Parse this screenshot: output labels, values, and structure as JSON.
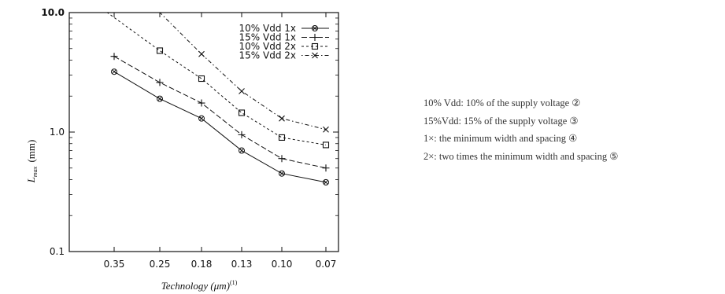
{
  "chart_data": {
    "type": "line",
    "categories": [
      "0.35",
      "0.25",
      "0.18",
      "0.13",
      "0.10",
      "0.07"
    ],
    "xlabel": "Technology (μm)",
    "xlabel_sup": "(1)",
    "ylabel": "L",
    "ylabel_sub": "max",
    "ylabel_unit": "(mm)",
    "yscale": "log",
    "ylim": [
      0.1,
      10.0
    ],
    "yticks": [
      "0.1",
      "1.0",
      "10.0"
    ],
    "legend_position": "top-right",
    "grid": false,
    "series": [
      {
        "name": "10% Vdd 1x",
        "marker": "circle-x",
        "dash": "solid",
        "values": [
          3.2,
          1.9,
          1.3,
          0.7,
          0.45,
          0.38
        ]
      },
      {
        "name": "15% Vdd 1x",
        "marker": "plus",
        "dash": "long-dash",
        "values": [
          4.3,
          2.6,
          1.75,
          0.95,
          0.6,
          0.5
        ]
      },
      {
        "name": "10% Vdd 2x",
        "marker": "square",
        "dash": "short-dash",
        "values": [
          null,
          4.8,
          2.8,
          1.45,
          0.9,
          0.78
        ]
      },
      {
        "name": "15% Vdd 2x",
        "marker": "x",
        "dash": "dot-dash",
        "values": [
          null,
          null,
          4.5,
          2.2,
          1.3,
          1.05
        ]
      }
    ]
  },
  "notes": [
    "10% Vdd: 10% of the supply voltage ②",
    "15%Vdd: 15% of the supply voltage ③",
    "1×: the minimum width and spacing ④",
    "2×: two times the minimum width and spacing ⑤"
  ]
}
